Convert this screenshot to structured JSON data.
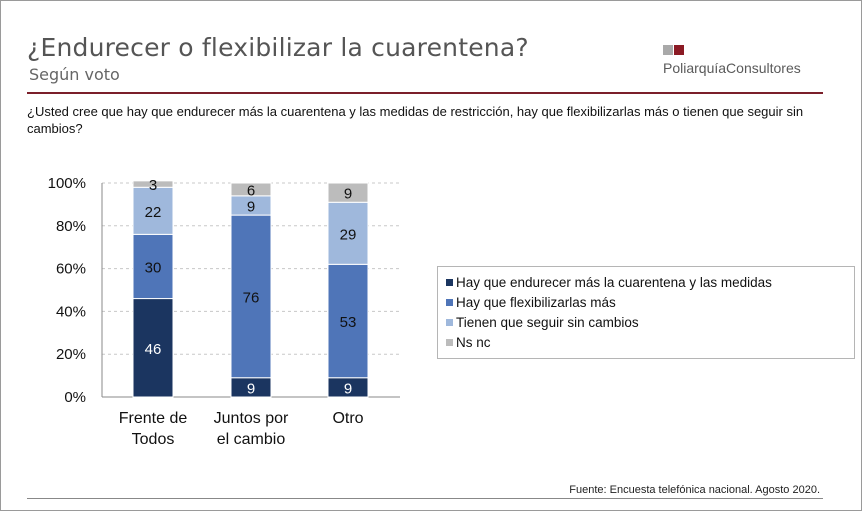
{
  "header": {
    "title": "¿Endurecer o flexibilizar la cuarentena?",
    "subtitle": "Según voto"
  },
  "logo": {
    "text": "PoliarquíaConsultores"
  },
  "question": "¿Usted cree que hay que endurecer más la cuarentena y las medidas de restricción, hay que flexibilizarlas más o tienen que seguir sin cambios?",
  "source": "Fuente: Encuesta telefónica nacional. Agosto 2020.",
  "colors": {
    "accent_rule": "#7b1f2a",
    "logo_gray": "#a9a9a9",
    "logo_red": "#8b1a24"
  },
  "chart_data": {
    "type": "bar",
    "stacked": true,
    "percent": true,
    "categories": [
      "Frente de|Todos",
      "Juntos por|el cambio",
      "Otro"
    ],
    "series": [
      {
        "name": "Hay que endurecer más la cuarentena  y las medidas",
        "color": "#1b3560",
        "values": [
          46,
          9,
          9
        ]
      },
      {
        "name": "Hay que flexibilizarlas más",
        "color": "#4f75b8",
        "values": [
          30,
          76,
          53
        ]
      },
      {
        "name": "Tienen que seguir sin cambios",
        "color": "#9fb8dc",
        "values": [
          22,
          9,
          29
        ]
      },
      {
        "name": "Ns nc",
        "color": "#bcbcbc",
        "values": [
          3,
          6,
          9
        ]
      }
    ],
    "ylim": [
      0,
      100
    ],
    "yticks": [
      "0%",
      "20%",
      "40%",
      "60%",
      "80%",
      "100%"
    ],
    "grid": true,
    "legend_position": "right"
  }
}
